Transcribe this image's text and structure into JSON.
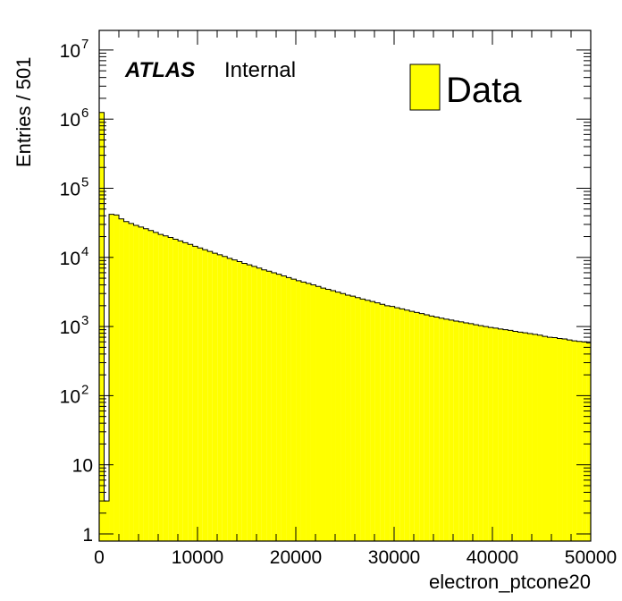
{
  "chart_data": {
    "type": "bar",
    "xlabel": "electron_ptcone20",
    "ylabel": "Entries / 501",
    "xlim": [
      0,
      50000
    ],
    "ylim": [
      0.8,
      20000000
    ],
    "y_scale": "log",
    "bin_width": 501,
    "fill_color": "#ffff00",
    "edge_color": "#000000",
    "x_ticks": [
      "0",
      "10000",
      "20000",
      "30000",
      "40000",
      "50000"
    ],
    "y_ticks": [
      {
        "value": 1,
        "base": "1",
        "exp": ""
      },
      {
        "value": 10,
        "base": "10",
        "exp": ""
      },
      {
        "value": 100,
        "base": "10",
        "exp": "2"
      },
      {
        "value": 1000,
        "base": "10",
        "exp": "3"
      },
      {
        "value": 10000,
        "base": "10",
        "exp": "4"
      },
      {
        "value": 100000,
        "base": "10",
        "exp": "5"
      },
      {
        "value": 1000000,
        "base": "10",
        "exp": "6"
      },
      {
        "value": 10000000,
        "base": "10",
        "exp": "7"
      }
    ],
    "legend": {
      "entries": [
        "Data"
      ],
      "position": "top-right"
    },
    "annotations": {
      "experiment": "ATLAS",
      "status": "Internal"
    },
    "series": [
      {
        "name": "Data",
        "values": [
          1250000,
          3,
          42000,
          41000,
          36000,
          33000,
          31000,
          29000,
          27500,
          26000,
          24500,
          23000,
          21500,
          20500,
          19400,
          18300,
          17300,
          16300,
          15400,
          14500,
          13700,
          12900,
          12200,
          11500,
          10900,
          10300,
          9700,
          9200,
          8700,
          8200,
          7800,
          7400,
          7000,
          6600,
          6300,
          6000,
          5700,
          5400,
          5100,
          4850,
          4600,
          4400,
          4200,
          4000,
          3800,
          3600,
          3450,
          3300,
          3150,
          3000,
          2850,
          2750,
          2620,
          2500,
          2400,
          2300,
          2200,
          2100,
          2000,
          1950,
          1870,
          1800,
          1730,
          1660,
          1600,
          1540,
          1480,
          1420,
          1370,
          1320,
          1280,
          1240,
          1200,
          1170,
          1130,
          1100,
          1060,
          1030,
          1000,
          970,
          950,
          920,
          900,
          880,
          850,
          830,
          810,
          790,
          770,
          750,
          720,
          700,
          690,
          670,
          660,
          640,
          620,
          610,
          600,
          580
        ]
      }
    ]
  }
}
